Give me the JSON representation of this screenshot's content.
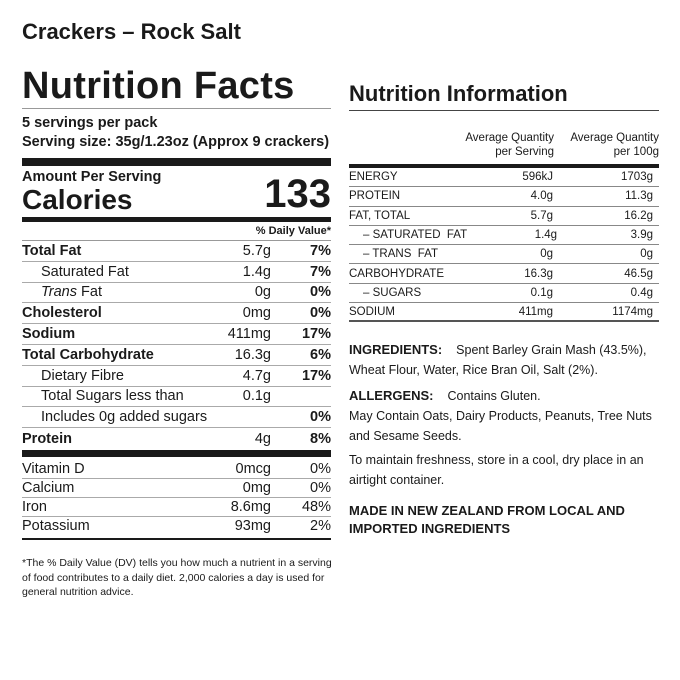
{
  "product_title": "Crackers – Rock Salt",
  "facts": {
    "heading": "Nutrition Facts",
    "servings_per_pack": "5 servings per pack",
    "serving_size": "Serving size: 35g/1.23oz (Approx 9 crackers)",
    "amount_per_serving": "Amount Per Serving",
    "calories_label": "Calories",
    "calories_value": "133",
    "dv_header": "% Daily Value*",
    "rows": [
      {
        "name": "Total Fat",
        "amount": "5.7g",
        "dv": "7%"
      },
      {
        "name": "Saturated Fat",
        "amount": "1.4g",
        "dv": "7%"
      },
      {
        "name_italic": "Trans",
        "name": "Fat",
        "amount": "0g",
        "dv": "0%"
      },
      {
        "name": "Cholesterol",
        "amount": "0mg",
        "dv": "0%"
      },
      {
        "name": "Sodium",
        "amount": "411mg",
        "dv": "17%"
      },
      {
        "name": "Total Carbohydrate",
        "amount": "16.3g",
        "dv": "6%"
      },
      {
        "name": "Dietary Fibre",
        "amount": "4.7g",
        "dv": "17%"
      },
      {
        "name": "Total Sugars less than",
        "amount": "0.1g",
        "dv": ""
      },
      {
        "name": "Includes 0g added sugars",
        "amount": "",
        "dv": "0%"
      },
      {
        "name": "Protein",
        "amount": "4g",
        "dv": "8%"
      }
    ],
    "vitamins": [
      {
        "name": "Vitamin D",
        "amount": "0mcg",
        "dv": "0%"
      },
      {
        "name": "Calcium",
        "amount": "0mg",
        "dv": "0%"
      },
      {
        "name": "Iron",
        "amount": "8.6mg",
        "dv": "48%"
      },
      {
        "name": "Potassium",
        "amount": "93mg",
        "dv": "2%"
      }
    ],
    "footnote": "*The % Daily Value (DV) tells you how much a nutrient in a serving of food contributes to a daily diet. 2,000 calories a day is used for general nutrition advice."
  },
  "info": {
    "heading": "Nutrition Information",
    "col1": "Average Quantity per Serving",
    "col2": "Average Quantity per 100g",
    "rows": [
      {
        "name": "ENERGY",
        "serving": "596kJ",
        "per100": "1703g"
      },
      {
        "name": "PROTEIN",
        "serving": "4.0g",
        "per100": "11.3g"
      },
      {
        "name": "FAT, TOTAL",
        "serving": "5.7g",
        "per100": "16.2g"
      },
      {
        "name": "– SATURATED  FAT",
        "serving": "1.4g",
        "per100": "3.9g"
      },
      {
        "name": "– TRANS  FAT",
        "serving": "0g",
        "per100": "0g"
      },
      {
        "name": "CARBOHYDRATE",
        "serving": "16.3g",
        "per100": "46.5g"
      },
      {
        "name": "– SUGARS",
        "serving": "0.1g",
        "per100": "0.4g"
      },
      {
        "name": "SODIUM",
        "serving": "411mg",
        "per100": "1174mg"
      }
    ],
    "ingredients_label": "INGREDIENTS:",
    "ingredients": "Spent Barley Grain Mash (43.5%), Wheat Flour, Water, Rice Bran Oil, Salt (2%).",
    "allergens_label": "ALLERGENS:",
    "allergens": "Contains Gluten.",
    "may_contain": "May Contain Oats, Dairy Products, Peanuts, Tree Nuts and Sesame Seeds.",
    "storage": "To maintain freshness, store in a cool, dry place in an airtight container.",
    "made_in": "MADE IN NEW ZEALAND FROM LOCAL AND IMPORTED INGREDIENTS"
  }
}
